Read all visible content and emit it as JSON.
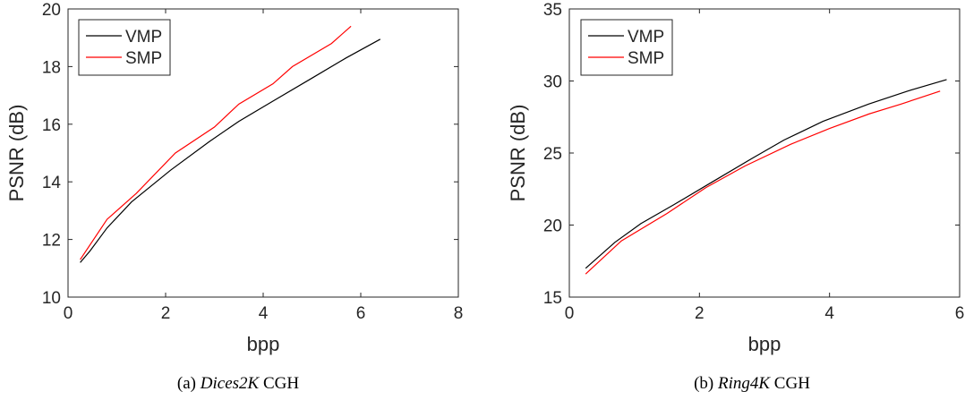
{
  "chart_data": [
    {
      "type": "line",
      "xlabel": "bpp",
      "ylabel": "PSNR (dB)",
      "xlim": [
        0,
        8
      ],
      "ylim": [
        10,
        20
      ],
      "xticks": [
        "0",
        "2",
        "4",
        "6",
        "8"
      ],
      "yticks": [
        "10",
        "12",
        "14",
        "16",
        "18",
        "20"
      ],
      "legend_position": "top-left",
      "series": [
        {
          "name": "VMP",
          "color": "#000000",
          "points": [
            [
              0.25,
              11.2
            ],
            [
              0.45,
              11.6
            ],
            [
              0.8,
              12.4
            ],
            [
              1.3,
              13.3
            ],
            [
              2.1,
              14.4
            ],
            [
              2.9,
              15.4
            ],
            [
              3.5,
              16.1
            ],
            [
              4.2,
              16.8
            ],
            [
              5.0,
              17.6
            ],
            [
              5.7,
              18.3
            ],
            [
              6.4,
              18.95
            ]
          ]
        },
        {
          "name": "SMP",
          "color": "#ff0000",
          "points": [
            [
              0.25,
              11.3
            ],
            [
              0.8,
              12.7
            ],
            [
              1.4,
              13.6
            ],
            [
              2.2,
              15.0
            ],
            [
              3.0,
              15.9
            ],
            [
              3.5,
              16.7
            ],
            [
              4.2,
              17.4
            ],
            [
              4.6,
              18.0
            ],
            [
              5.4,
              18.8
            ],
            [
              5.8,
              19.4
            ]
          ]
        }
      ],
      "caption": {
        "prefix": "(a) ",
        "italic": "Dices2K",
        "suffix": " CGH"
      }
    },
    {
      "type": "line",
      "xlabel": "bpp",
      "ylabel": "PSNR (dB)",
      "xlim": [
        0,
        6
      ],
      "ylim": [
        15,
        35
      ],
      "xticks": [
        "0",
        "2",
        "4",
        "6"
      ],
      "yticks": [
        "15",
        "20",
        "25",
        "30",
        "35"
      ],
      "legend_position": "top-left",
      "series": [
        {
          "name": "VMP",
          "color": "#000000",
          "points": [
            [
              0.25,
              17.0
            ],
            [
              0.7,
              18.8
            ],
            [
              1.1,
              20.1
            ],
            [
              1.6,
              21.4
            ],
            [
              2.2,
              23.0
            ],
            [
              2.8,
              24.6
            ],
            [
              3.3,
              25.9
            ],
            [
              3.9,
              27.2
            ],
            [
              4.6,
              28.4
            ],
            [
              5.2,
              29.3
            ],
            [
              5.8,
              30.1
            ]
          ]
        },
        {
          "name": "SMP",
          "color": "#ff0000",
          "points": [
            [
              0.25,
              16.6
            ],
            [
              0.8,
              18.9
            ],
            [
              1.5,
              20.8
            ],
            [
              2.1,
              22.6
            ],
            [
              2.7,
              24.1
            ],
            [
              3.4,
              25.6
            ],
            [
              4.0,
              26.7
            ],
            [
              4.6,
              27.7
            ],
            [
              5.1,
              28.4
            ],
            [
              5.7,
              29.3
            ]
          ]
        }
      ],
      "caption": {
        "prefix": "(b) ",
        "italic": "Ring4K",
        "suffix": " CGH"
      }
    }
  ]
}
